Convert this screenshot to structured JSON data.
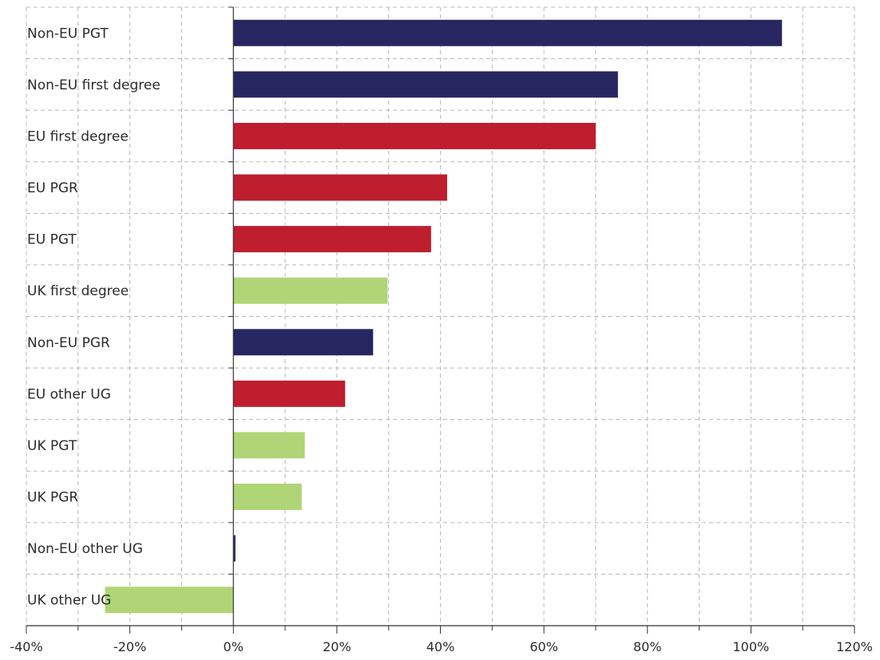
{
  "chart_data": {
    "type": "bar",
    "orientation": "horizontal",
    "categories": [
      "Non-EU PGT",
      "Non-EU first degree",
      "EU first degree",
      "EU PGR",
      "EU PGT",
      "UK first degree",
      "Non-EU PGR",
      "EU other UG",
      "UK PGT",
      "UK PGR",
      "Non-EU other UG",
      "UK other UG"
    ],
    "values": [
      106,
      74.3,
      70,
      41.3,
      38.2,
      29.8,
      27,
      21.6,
      13.8,
      13.2,
      0.4,
      -24.8
    ],
    "groups": [
      "Non-EU",
      "Non-EU",
      "EU",
      "EU",
      "EU",
      "UK",
      "Non-EU",
      "EU",
      "UK",
      "UK",
      "Non-EU",
      "UK"
    ],
    "group_colors": {
      "Non-EU": "#272660",
      "EU": "#be1e2d",
      "UK": "#afd576"
    },
    "xlim": [
      -40,
      120
    ],
    "xticks": [
      -40,
      -20,
      0,
      20,
      40,
      60,
      80,
      100,
      120
    ],
    "xtick_labels": [
      "-40%",
      "-20%",
      "0%",
      "20%",
      "40%",
      "60%",
      "80%",
      "100%",
      "120%"
    ],
    "grid": true,
    "title": "",
    "xlabel": "",
    "ylabel": ""
  }
}
